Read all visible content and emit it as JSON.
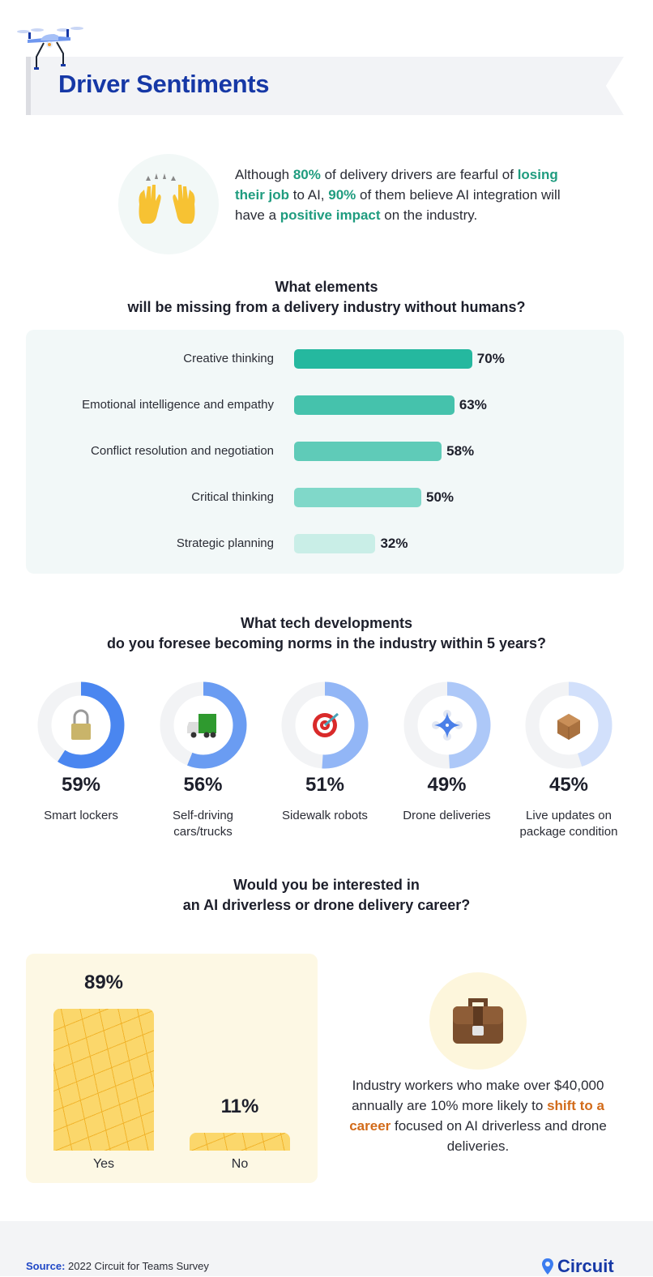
{
  "header": {
    "title": "Driver Sentiments",
    "icon": "drone-icon"
  },
  "intro": {
    "icon": "raising-hands-icon",
    "parts": [
      "Although ",
      "80%",
      " of delivery drivers are fearful of ",
      "losing their job",
      " to AI,  ",
      "90%",
      " of them believe AI integration will have a ",
      "positive impact",
      " on the industry."
    ],
    "highlight_color": "#1f9c7f"
  },
  "chart_data": [
    {
      "type": "bar",
      "orientation": "horizontal",
      "title": "What elements will be missing from a delivery industry without humans?",
      "title_lines": [
        "What elements",
        "will be missing from a delivery industry without humans?"
      ],
      "categories": [
        "Creative thinking",
        "Emotional intelligence and empathy",
        "Conflict resolution and negotiation",
        "Critical thinking",
        "Strategic planning"
      ],
      "values": [
        70,
        63,
        58,
        50,
        32
      ],
      "labels": [
        "70%",
        "63%",
        "58%",
        "50%",
        "32%"
      ],
      "colors": [
        "#25b89f",
        "#45c2ac",
        "#5fcbb8",
        "#80d8c9",
        "#c9eee7"
      ],
      "unit": "%"
    },
    {
      "type": "pie",
      "subtype": "donut-set",
      "title": "What tech developments do you foresee becoming norms in the industry within 5 years?",
      "title_lines": [
        "What tech developments",
        "do you foresee becoming norms in the industry within 5 years?"
      ],
      "categories": [
        "Smart lockers",
        "Self-driving cars/trucks",
        "Sidewalk robots",
        "Drone deliveries",
        "Live updates on package condition"
      ],
      "values": [
        59,
        56,
        51,
        49,
        45
      ],
      "labels": [
        "59%",
        "56%",
        "51%",
        "49%",
        "45%"
      ],
      "icons": [
        "lock-icon",
        "truck-icon",
        "target-icon",
        "drone-icon",
        "package-icon"
      ],
      "colors": [
        "#4a86f0",
        "#6a9cf2",
        "#92b6f6",
        "#adc8f8",
        "#d2e0fb"
      ],
      "track_color": "#f2f3f5"
    },
    {
      "type": "bar",
      "title": "Would you be interested in an AI driverless or drone delivery career?",
      "title_lines": [
        "Would you be interested in",
        "an AI driverless or drone delivery career?"
      ],
      "categories": [
        "Yes",
        "No"
      ],
      "values": [
        89,
        11
      ],
      "labels": [
        "89%",
        "11%"
      ],
      "color": "#fbd76b"
    }
  ],
  "career": {
    "icon": "briefcase-icon",
    "parts": [
      "Industry workers who make over $40,000 annually are 10% more likely to ",
      "shift to a career",
      " focused on AI driverless and drone deliveries."
    ],
    "highlight_color": "#d26b1a"
  },
  "footer": {
    "source_label": "Source:",
    "source_text": " 2022 Circuit for Teams Survey",
    "logo": "Circuit",
    "logo_icon": "map-pin-icon"
  }
}
